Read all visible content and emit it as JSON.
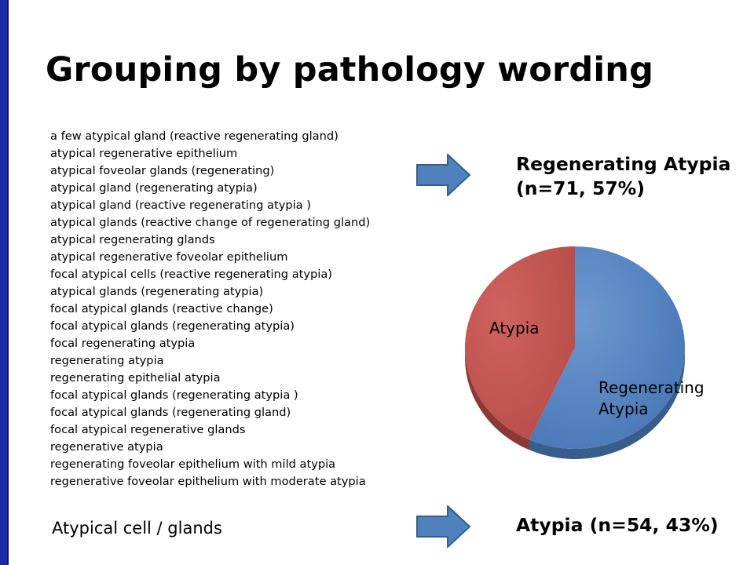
{
  "slide": {
    "title": "Grouping by pathology wording",
    "terms": [
      "a few atypical gland (reactive regenerating gland)",
      "atypical regenerative epithelium",
      "atypical foveolar glands (regenerating)",
      "atypical gland (regenerating atypia)",
      "atypical gland (reactive regenerating atypia )",
      "atypical glands (reactive change of regenerating gland)",
      "atypical regenerating glands",
      "atypical regenerative foveolar epithelium",
      "focal atypical cells (reactive regenerating atypia)",
      "atypical glands (regenerating atypia)",
      "focal atypical glands (reactive change)",
      "focal atypical glands (regenerating atypia)",
      "focal regenerating atypia",
      "regenerating atypia",
      "regenerating epithelial atypia",
      "focal atypical glands (regenerating atypia )",
      "focal atypical glands (regenerating gland)",
      "focal atypical regenerative glands",
      "regenerative atypia",
      "regenerating foveolar epithelium with mild atypia",
      "regenerative foveolar epithelium with moderate atypia"
    ],
    "group_caption": "Atypical cell / glands",
    "result_top_line1": "Regenerating Atypia",
    "result_top_line2": "(n=71, 57%)",
    "result_bottom": "Atypia  (n=54, 43%)",
    "colors": {
      "left_bar": "#1c2aa6",
      "arrow_fill": "#4f81bd",
      "arrow_stroke": "#385d8a"
    }
  },
  "chart_data": {
    "type": "pie",
    "title": "",
    "slices": [
      {
        "label": "Regenerating Atypia",
        "n": 71,
        "percent": 57,
        "color": "#4f81bd",
        "side_color": "#385d8a"
      },
      {
        "label": "Atypia",
        "n": 54,
        "percent": 43,
        "color": "#c0504d",
        "side_color": "#8c3836"
      }
    ],
    "labels": {
      "atypia": "Atypia",
      "regenerating_line1": "Regenerating",
      "regenerating_line2": "Atypia"
    },
    "legend": "none",
    "style": "3d"
  }
}
